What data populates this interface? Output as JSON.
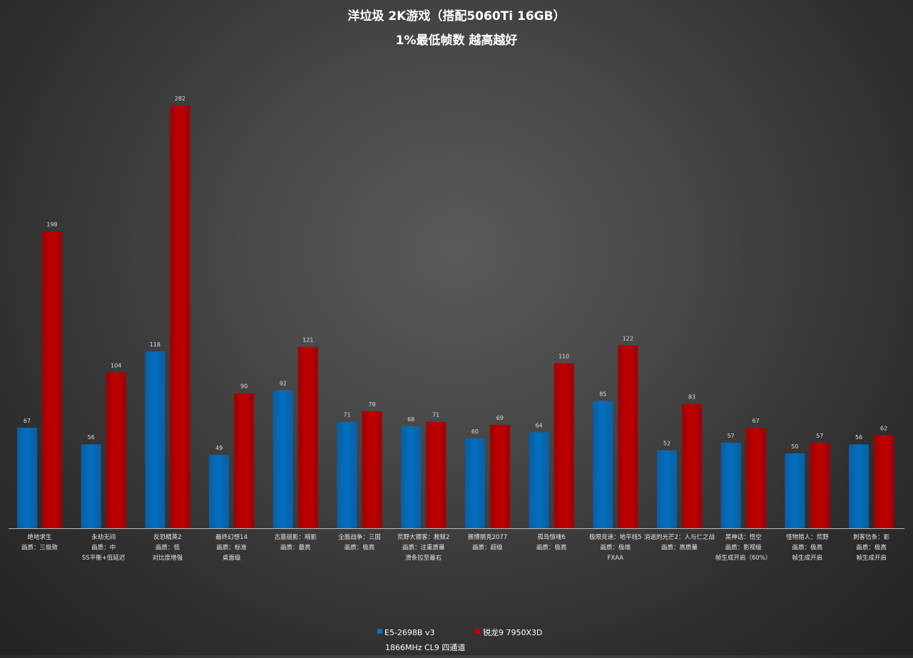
{
  "chart_data": {
    "type": "bar",
    "title": "洋垃圾 2K游戏（搭配5060Ti 16GB）",
    "subtitle": "1%最低帧数 越高越好",
    "xlabel": "",
    "ylabel": "",
    "ylim": [
      0,
      300
    ],
    "grid": false,
    "legend_position": "bottom",
    "legend_note": "1866MHz CL9 四通道",
    "categories": [
      [
        "绝地求生",
        "画质：三极致"
      ],
      [
        "永劫无间",
        "画质：中",
        "SS平衡+低延迟"
      ],
      [
        "反恐精英2",
        "画质：低",
        "对比度增强"
      ],
      [
        "最终幻想14",
        "画质：标准",
        "桌面级"
      ],
      [
        "古墓丽影：暗影",
        "画质：最高"
      ],
      [
        "全面战争：三国",
        "画质：极高"
      ],
      [
        "荒野大镖客：救赎2",
        "画质：注重质量",
        "滑条拉至最右"
      ],
      [
        "赛博朋克2077",
        "画质：超级"
      ],
      [
        "孤岛惊魂6",
        "画质：极高"
      ],
      [
        "极限竞速：地平线5",
        "画质：极端",
        "FXAA"
      ],
      [
        "消逝的光芒2：人与仁之战",
        "画质：高质量"
      ],
      [
        "黑神话：悟空",
        "画质：影视级",
        "帧生成开启（60%）"
      ],
      [
        "怪物猎人：荒野",
        "画质：极高",
        "帧生成开启"
      ],
      [
        "刺客信条：影",
        "画质：极高",
        "帧生成开启"
      ]
    ],
    "series": [
      {
        "name": "E5-2698B v3",
        "color": "#0070C0",
        "values": [
          67,
          56,
          118,
          49,
          92,
          71,
          68,
          60,
          64,
          85,
          52,
          57,
          50,
          56
        ]
      },
      {
        "name": "锐龙9 7950X3D",
        "color": "#C00000",
        "values": [
          198,
          104,
          282,
          90,
          121,
          78,
          71,
          69,
          110,
          122,
          83,
          67,
          57,
          62
        ]
      }
    ]
  }
}
